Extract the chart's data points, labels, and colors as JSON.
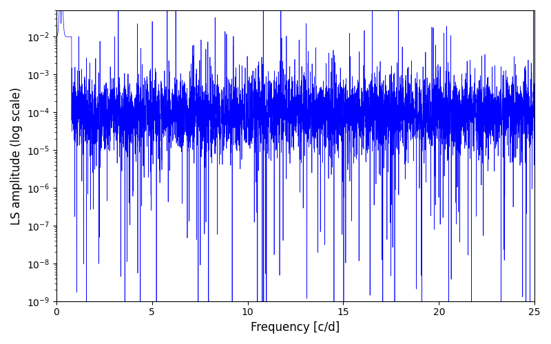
{
  "title": "",
  "xlabel": "Frequency [c/d]",
  "ylabel": "LS amplitude (log scale)",
  "line_color": "#0000ff",
  "xlim": [
    0,
    25
  ],
  "ylim": [
    1e-09,
    0.05
  ],
  "freq_min": 0.0,
  "freq_max": 25.0,
  "n_points": 5000,
  "seed": 7,
  "figsize": [
    8.0,
    5.0
  ],
  "dpi": 100,
  "linewidth": 0.5
}
